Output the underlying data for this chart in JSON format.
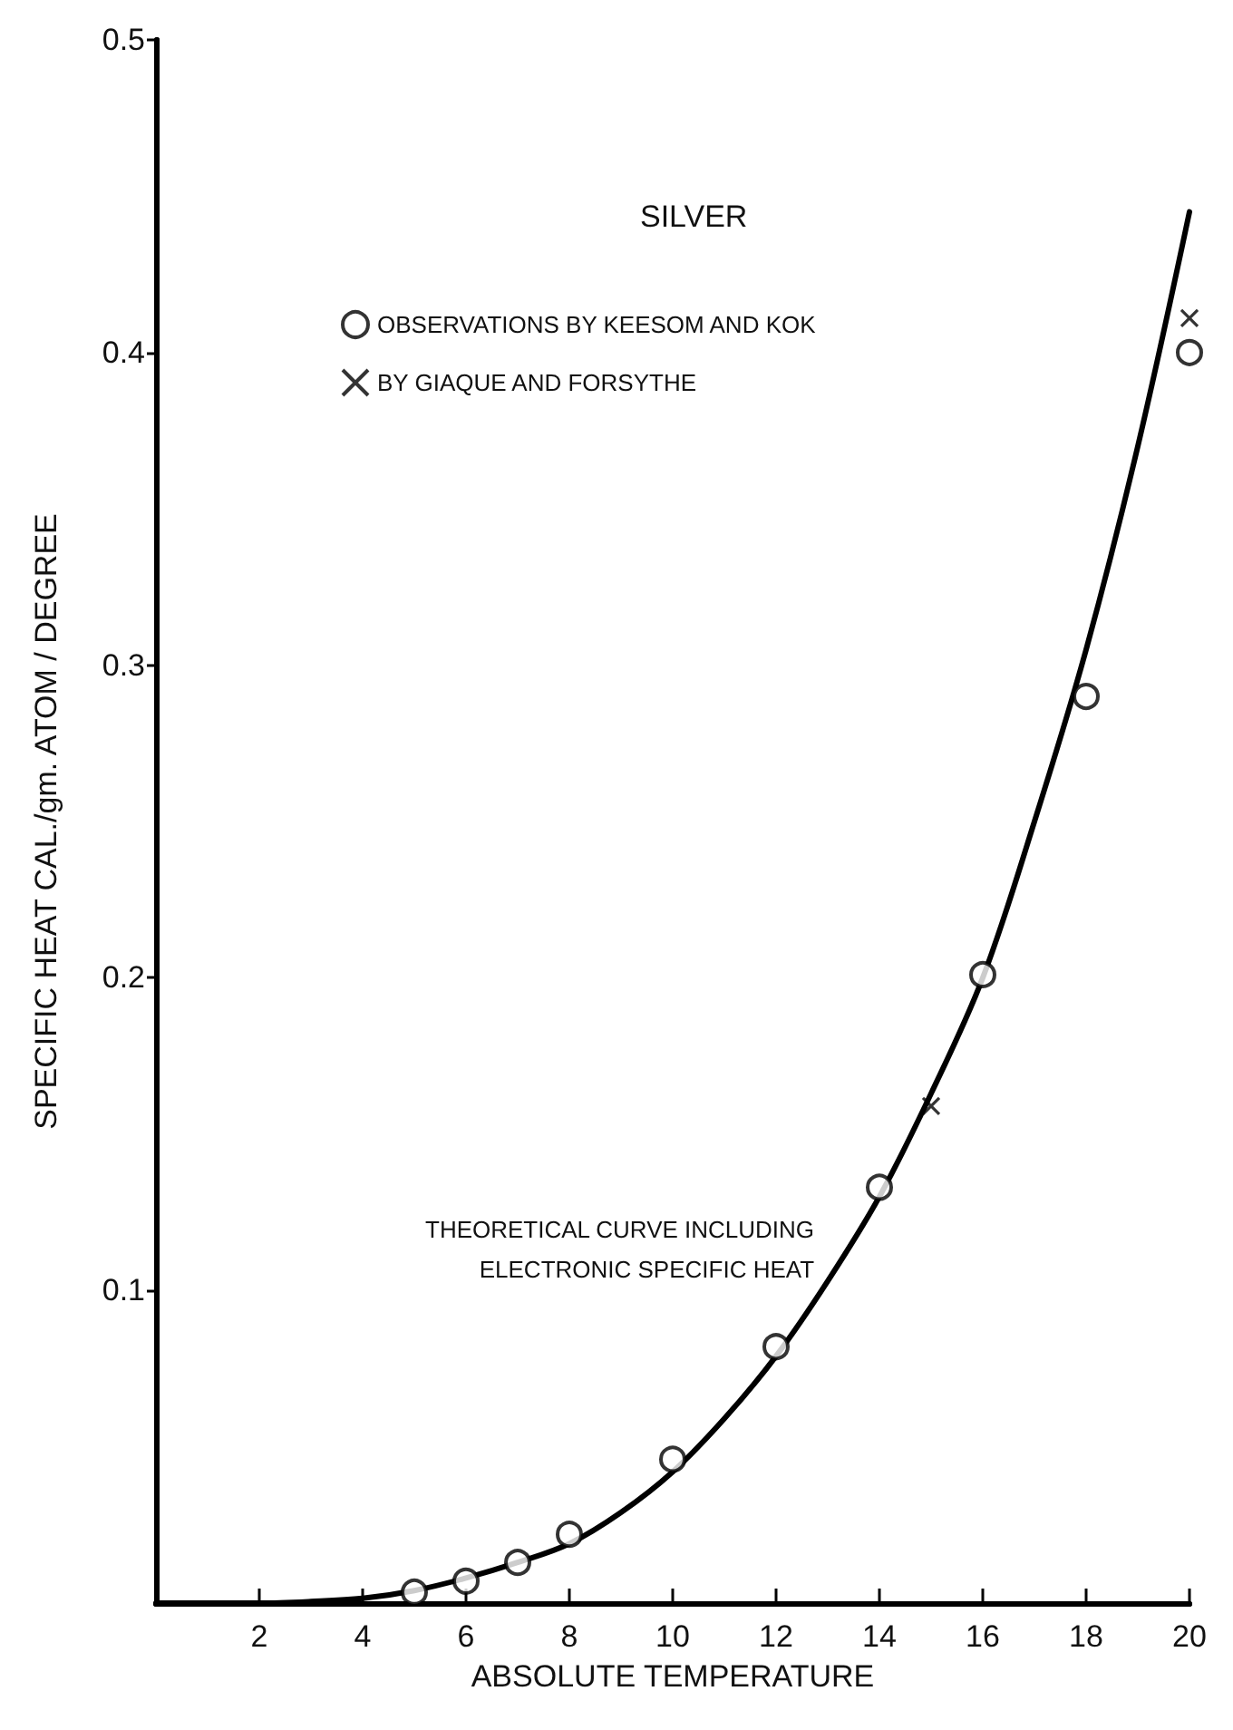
{
  "chart_data": {
    "type": "scatter",
    "title": "SILVER",
    "xlabel": "ABSOLUTE TEMPERATURE",
    "ylabel": "SPECIFIC HEAT CAL./gm. ATOM / DEGREE",
    "xlim": [
      0,
      20
    ],
    "xticks": [
      2,
      4,
      6,
      8,
      10,
      12,
      14,
      16,
      18,
      20
    ],
    "ylim": [
      0,
      0.5
    ],
    "yticks": [
      0.1,
      0.2,
      0.3,
      0.4,
      0.5
    ],
    "grid": false,
    "legend": "top",
    "annotations": [
      {
        "text": "THEORETICAL CURVE INCLUDING\nELECTRONIC SPECIFIC HEAT",
        "x": 13.3,
        "y": 0.113
      }
    ],
    "series": [
      {
        "type": "line",
        "color": "#000000",
        "marker": "none",
        "line_style": "solid",
        "x": [
          0,
          2,
          3,
          4,
          5,
          6,
          7,
          8,
          9,
          10,
          11,
          12,
          13,
          14,
          15,
          16,
          17,
          18,
          19,
          20
        ],
        "values": [
          0,
          0,
          0.0005,
          0.0015,
          0.004,
          0.008,
          0.013,
          0.019,
          0.029,
          0.042,
          0.059,
          0.079,
          0.103,
          0.13,
          0.163,
          0.2,
          0.25,
          0.305,
          0.37,
          0.445
        ]
      },
      {
        "type": "scatter",
        "name": "OBSERVATIONS BY KEESOM AND KOK",
        "color": "#000000",
        "marker": "circle",
        "x": [
          5,
          6,
          7,
          8,
          10,
          12,
          14,
          16,
          18,
          20
        ],
        "values": [
          0.0035,
          0.007,
          0.013,
          0.022,
          0.046,
          0.082,
          0.133,
          0.201,
          0.29,
          0.4
        ]
      },
      {
        "type": "scatter",
        "name": "BY GIAQUE AND FORSYTHE",
        "color": "#000000",
        "marker": "cross",
        "x": [
          15,
          20
        ],
        "values": [
          0.159,
          0.411
        ]
      }
    ]
  }
}
